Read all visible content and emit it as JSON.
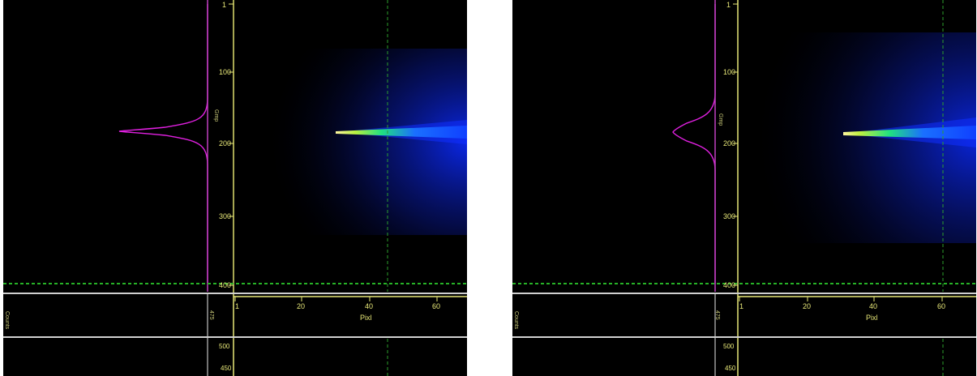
{
  "panels": [
    {
      "id": "left",
      "y_axis_title": "Gmp",
      "y_ticks": [
        "1",
        "100",
        "200",
        "300",
        "400"
      ],
      "x_axis_title": "Pixl",
      "x_ticks": [
        "1",
        "20",
        "40",
        "60"
      ],
      "lower_y_label": "475",
      "side_label": "Counts",
      "bottom_ticks": [
        "500",
        "450"
      ],
      "colors": {
        "profile": "#e020e0",
        "axis": "#e8e878",
        "cursor": "#2ca02c"
      }
    },
    {
      "id": "right",
      "y_axis_title": "Gmp",
      "y_ticks": [
        "1",
        "100",
        "200",
        "300",
        "400"
      ],
      "x_axis_title": "Pixl",
      "x_ticks": [
        "1",
        "20",
        "40",
        "60"
      ],
      "lower_y_label": "475",
      "side_label": "Counts",
      "bottom_ticks": [
        "500",
        "450"
      ],
      "colors": {
        "profile": "#e020e0",
        "axis": "#e8e878",
        "cursor": "#2ca02c"
      }
    }
  ]
}
